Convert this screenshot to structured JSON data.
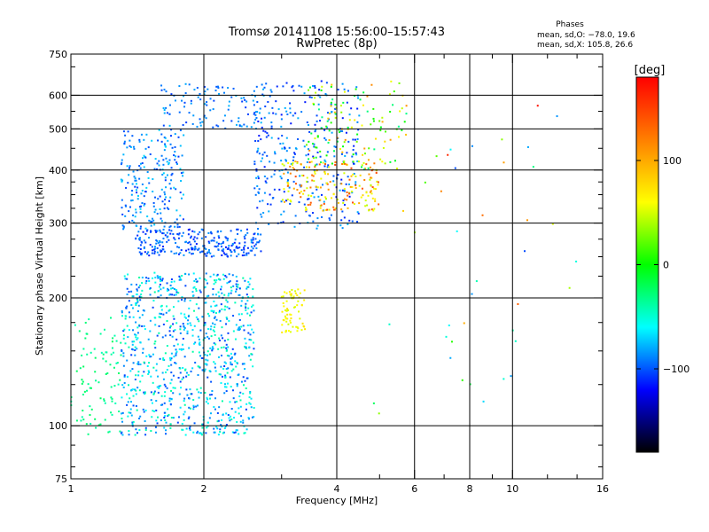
{
  "chart_data": {
    "type": "scatter",
    "title": "Tromsø 20141108 15:56:00–15:57:43",
    "subtitle": "RwPretec (8p)",
    "xlabel": "Frequency [MHz]",
    "ylabel": "Stationary phase Virtual Height [km]",
    "x_scale": "log",
    "y_scale": "log",
    "xlim": [
      1,
      16
    ],
    "ylim": [
      75,
      750
    ],
    "x_ticks": [
      1,
      2,
      4,
      6,
      8,
      10,
      16
    ],
    "y_ticks": [
      75,
      100,
      200,
      300,
      400,
      500,
      600,
      750
    ],
    "x_gridlines": [
      2,
      4,
      6,
      8,
      10
    ],
    "y_gridlines": [
      100,
      200,
      300,
      400,
      500,
      600
    ],
    "phases": {
      "title": "Phases",
      "line1": "mean, sd,O: −78.0, 19.6",
      "line2": "mean, sd,X: 105.8, 26.6"
    },
    "colorbar": {
      "label": "[deg]",
      "range": [
        -180,
        180
      ],
      "ticks": [
        100,
        0,
        -100
      ],
      "colors": [
        "#ff0000",
        "#ff7f00",
        "#ffff00",
        "#00ff00",
        "#00ffff",
        "#0000ff",
        "#000000"
      ]
    },
    "clusters": [
      {
        "f": [
          1.0,
          1.3
        ],
        "h": [
          95,
          180
        ],
        "phase": [
          -30,
          0
        ],
        "n": 90
      },
      {
        "f": [
          1.3,
          2.6
        ],
        "h": [
          95,
          230
        ],
        "phase": [
          -110,
          -20
        ],
        "n": 900
      },
      {
        "f": [
          1.4,
          2.7
        ],
        "h": [
          250,
          290
        ],
        "phase": [
          -120,
          -80
        ],
        "n": 260
      },
      {
        "f": [
          1.3,
          1.8
        ],
        "h": [
          290,
          500
        ],
        "phase": [
          -110,
          -60
        ],
        "n": 220
      },
      {
        "f": [
          1.6,
          2.7
        ],
        "h": [
          500,
          640
        ],
        "phase": [
          -110,
          -70
        ],
        "n": 110
      },
      {
        "f": [
          2.6,
          4.5
        ],
        "h": [
          290,
          650
        ],
        "phase": [
          -120,
          -70
        ],
        "n": 320
      },
      {
        "f": [
          3.0,
          5.0
        ],
        "h": [
          320,
          420
        ],
        "phase": [
          80,
          160
        ],
        "n": 180
      },
      {
        "f": [
          3.4,
          5.8
        ],
        "h": [
          400,
          650
        ],
        "phase": [
          -20,
          140
        ],
        "n": 130
      },
      {
        "f": [
          3.0,
          3.4
        ],
        "h": [
          165,
          210
        ],
        "phase": [
          90,
          115
        ],
        "n": 70
      },
      {
        "f": [
          4.8,
          14.0
        ],
        "h": [
          100,
          600
        ],
        "phase": [
          -120,
          180
        ],
        "n": 40
      }
    ]
  }
}
